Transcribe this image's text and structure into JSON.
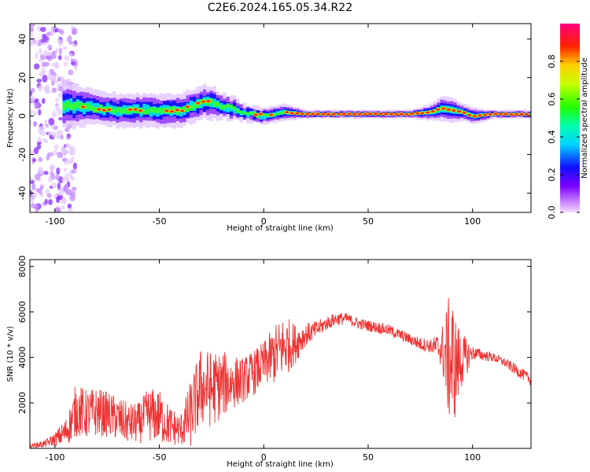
{
  "figure": {
    "title": "C2E6.2024.165.05.34.R22"
  },
  "colors": {
    "snr_line": "#ee3333",
    "background": "#ffffff",
    "axes": "#000000"
  },
  "chart_data": [
    {
      "type": "heatmap",
      "xlabel": "Height of straight line (km)",
      "ylabel": "Frequency (Hz)",
      "xlim": [
        -112,
        128
      ],
      "ylim": [
        -50,
        48
      ],
      "xticks": [
        -100,
        -50,
        0,
        50,
        100
      ],
      "xtick_labels": [
        "-100",
        "-50",
        "0",
        "50",
        "100"
      ],
      "yticks": [
        -40,
        -20,
        0,
        20,
        40
      ],
      "ytick_labels": [
        "-40",
        "-20",
        "0",
        "20",
        "40"
      ],
      "grid": false,
      "colormap": "rainbow (magenta-blue-cyan-green-yellow-red-pink)",
      "colorbar": {
        "label": "Normalized spectral amplitude",
        "range": [
          0,
          1
        ],
        "ticks": [
          0.0,
          0.2,
          0.4,
          0.6,
          0.8
        ],
        "tick_labels": [
          "0.0",
          "0.2",
          "0.4",
          "0.6",
          "0.8"
        ]
      },
      "ridge": {
        "description_points_x": [
          -100,
          -90,
          -80,
          -70,
          -60,
          -50,
          -40,
          -30,
          -25,
          -20,
          -15,
          -10,
          -5,
          0,
          5,
          10,
          20,
          30,
          40,
          50,
          60,
          70,
          80,
          85,
          90,
          95,
          100,
          110,
          120,
          128
        ],
        "frequency_center_hz": [
          6,
          5,
          4,
          3,
          3,
          3,
          3,
          7,
          7,
          5,
          4,
          2,
          1,
          0,
          1,
          2,
          1,
          1,
          1,
          1,
          1,
          1,
          2,
          4,
          3,
          2,
          0,
          1,
          1,
          1
        ],
        "frequency_halfwidth_hz": [
          6,
          5,
          4,
          4,
          4,
          4,
          4,
          4,
          4,
          3,
          3,
          2,
          2,
          2,
          2,
          2,
          1,
          1,
          1,
          1,
          1,
          1,
          2,
          3,
          3,
          2,
          2,
          1,
          1,
          1
        ]
      },
      "scatter_region": {
        "x_range": [
          -112,
          -90
        ],
        "y_range": [
          -50,
          48
        ]
      }
    },
    {
      "type": "line",
      "xlabel": "Height of straight line (km)",
      "ylabel": "SNR (10 * v/v)",
      "xlim": [
        -112,
        128
      ],
      "ylim": [
        0,
        8300
      ],
      "xticks": [
        -100,
        -50,
        0,
        50,
        100
      ],
      "xtick_labels": [
        "-100",
        "-50",
        "0",
        "50",
        "100"
      ],
      "yticks": [
        2000,
        4000,
        6000,
        8000
      ],
      "ytick_labels": [
        "2000",
        "4000",
        "6000",
        "8000"
      ],
      "grid": false,
      "series": [
        {
          "x": [
            -112,
            -105,
            -100,
            -95,
            -92,
            -90,
            -85,
            -80,
            -75,
            -70,
            -65,
            -60,
            -55,
            -50,
            -45,
            -40,
            -35,
            -30,
            -25,
            -20,
            -15,
            -10,
            -5,
            0,
            5,
            10,
            15,
            20,
            25,
            30,
            35,
            40,
            45,
            50,
            55,
            60,
            65,
            70,
            75,
            80,
            85,
            88,
            90,
            92,
            95,
            100,
            105,
            110,
            115,
            120,
            125,
            128
          ],
          "y": [
            100,
            200,
            400,
            700,
            1200,
            1700,
            1500,
            1600,
            1500,
            1300,
            1100,
            1100,
            1500,
            1400,
            1000,
            800,
            1500,
            2700,
            2600,
            2800,
            2900,
            3000,
            3300,
            3700,
            4100,
            4500,
            4600,
            5000,
            5200,
            5500,
            5700,
            5700,
            5500,
            5400,
            5300,
            5200,
            5000,
            4800,
            4600,
            4500,
            4400,
            4000,
            3800,
            3600,
            3900,
            4200,
            4100,
            4000,
            3800,
            3500,
            3200,
            3000
          ],
          "spread": [
            100,
            150,
            300,
            600,
            900,
            1200,
            1100,
            1100,
            1000,
            1000,
            900,
            900,
            1200,
            1200,
            900,
            700,
            1500,
            1800,
            1700,
            1500,
            1200,
            1000,
            1000,
            1000,
            1300,
            1400,
            900,
            500,
            400,
            300,
            300,
            250,
            250,
            250,
            250,
            250,
            250,
            250,
            300,
            300,
            800,
            2500,
            3200,
            2200,
            1200,
            300,
            250,
            200,
            200,
            250,
            250,
            250
          ]
        }
      ]
    }
  ]
}
